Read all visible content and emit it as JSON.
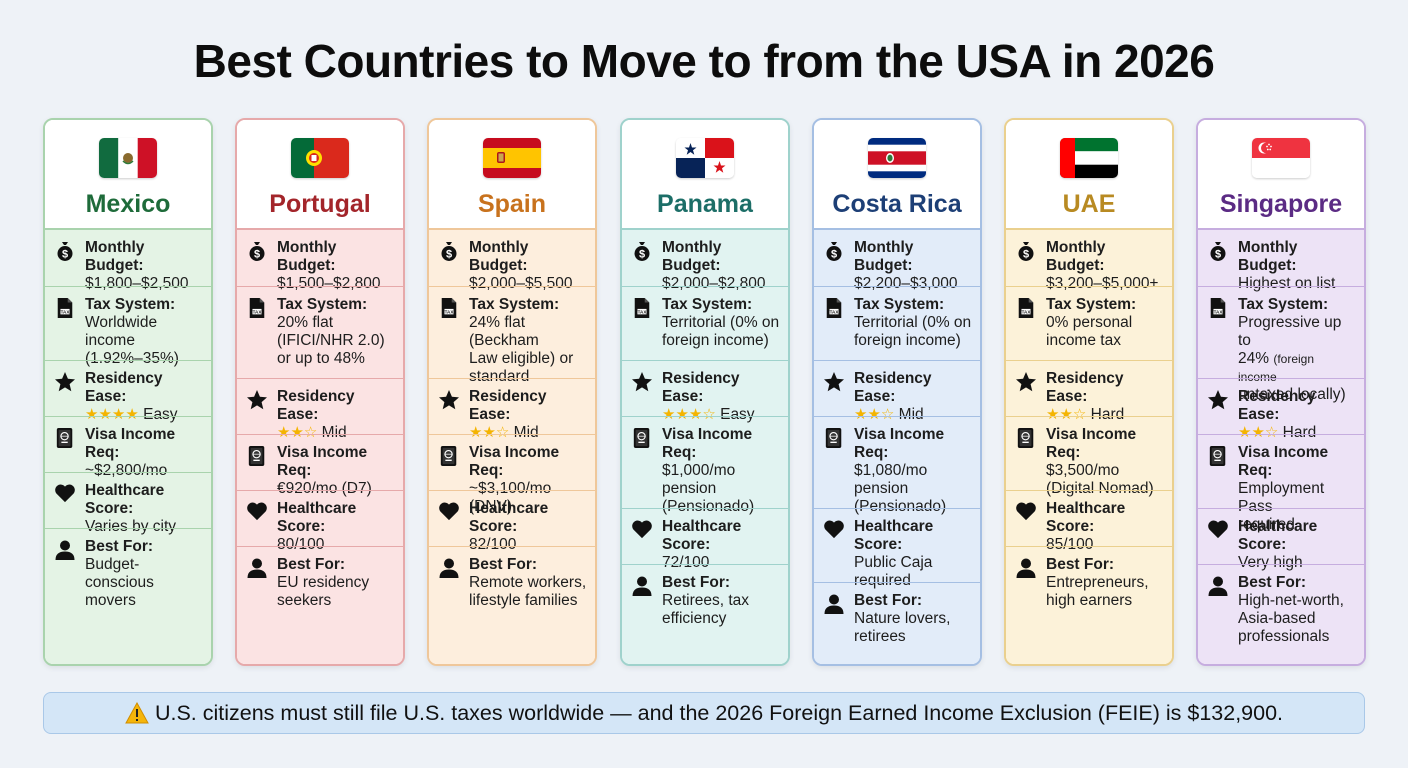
{
  "title": "Best Countries to Move to from the USA in 2026",
  "labels": {
    "budget": "Monthly Budget:",
    "tax": "Tax System:",
    "residency": "Residency Ease:",
    "visa": "Visa Income Req:",
    "health": "Healthcare Score:",
    "best": "Best For:"
  },
  "countries": [
    {
      "name": "Mexico",
      "accent": "#1e6b3a",
      "tint": "#e4f3e5",
      "border": "#a9d3ad",
      "flag": "mexico-flag",
      "budget": "$1,800–$2,500",
      "tax": [
        "Worldwide income",
        "(1.92%–35%)"
      ],
      "residency_stars": 4,
      "residency": "Easy",
      "visa": [
        "~$2,800/mo"
      ],
      "health": [
        "Varies by city"
      ],
      "best": [
        "Budget-conscious",
        "movers"
      ]
    },
    {
      "name": "Portugal",
      "accent": "#a3252a",
      "tint": "#fbe3e3",
      "border": "#e6a9aa",
      "flag": "portugal-flag",
      "budget": "$1,500–$2,800",
      "tax": [
        "20% flat",
        "(IFICI/NHR 2.0)",
        "or up to 48%"
      ],
      "residency_stars": 2,
      "residency": "Mid",
      "visa": [
        "€920/mo (D7)"
      ],
      "health": [
        "80/100"
      ],
      "best": [
        "EU residency",
        "seekers"
      ]
    },
    {
      "name": "Spain",
      "accent": "#c8721d",
      "tint": "#fdeedd",
      "border": "#efc79a",
      "flag": "spain-flag",
      "budget": "$2,000–$5,500",
      "tax": [
        "24% flat (Beckham",
        "Law eligible) or",
        "standard"
      ],
      "residency_stars": 2,
      "residency": "Mid",
      "visa": [
        "~$3,100/mo (DNV)"
      ],
      "health": [
        "82/100"
      ],
      "best": [
        "Remote workers,",
        "lifestyle families"
      ]
    },
    {
      "name": "Panama",
      "accent": "#1c6e67",
      "tint": "#e1f3f1",
      "border": "#9fd2cc",
      "flag": "panama-flag",
      "budget": "$2,000–$2,800",
      "tax": [
        "Territorial (0% on",
        "foreign income)"
      ],
      "residency_stars": 3,
      "residency": "Easy",
      "visa": [
        "$1,000/mo",
        "pension",
        "(Pensionado)"
      ],
      "health": [
        "72/100"
      ],
      "best": [
        "Retirees, tax",
        "efficiency"
      ]
    },
    {
      "name": "Costa Rica",
      "accent": "#1d3f76",
      "tint": "#e2ecf9",
      "border": "#a5bfe3",
      "flag": "costa-rica-flag",
      "budget": "$2,200–$3,000",
      "tax": [
        "Territorial (0% on",
        "foreign income)"
      ],
      "residency_stars": 2,
      "residency": "Mid",
      "visa": [
        "$1,080/mo",
        "pension",
        "(Pensionado)"
      ],
      "health": [
        "Public Caja",
        "required"
      ],
      "best": [
        "Nature lovers,",
        "retirees"
      ]
    },
    {
      "name": "UAE",
      "accent": "#b88a22",
      "tint": "#fcf2d9",
      "border": "#ead08e",
      "flag": "uae-flag",
      "budget": "$3,200–$5,000+",
      "tax": [
        "0% personal",
        "income tax"
      ],
      "residency_stars": 2,
      "residency": "Hard",
      "visa": [
        "$3,500/mo",
        "(Digital Nomad)"
      ],
      "health": [
        "85/100"
      ],
      "best": [
        "Entrepreneurs,",
        "high earners"
      ]
    },
    {
      "name": "Singapore",
      "accent": "#5b2b84",
      "tint": "#ede3f6",
      "border": "#c6addf",
      "flag": "singapore-flag",
      "budget": "Highest on list",
      "tax": [
        "Progressive up to",
        "24% (foreign income",
        "untaxed locally)"
      ],
      "residency_stars": 2,
      "residency": "Hard",
      "visa": [
        "Employment Pass",
        "required"
      ],
      "health": [
        "Very high"
      ],
      "best": [
        "High-net-worth,",
        "Asia-based",
        "professionals"
      ]
    }
  ],
  "footer": "U.S. citizens must still file U.S. taxes worldwide — and the 2026 Foreign Earned Income Exclusion (FEIE) is $132,900."
}
